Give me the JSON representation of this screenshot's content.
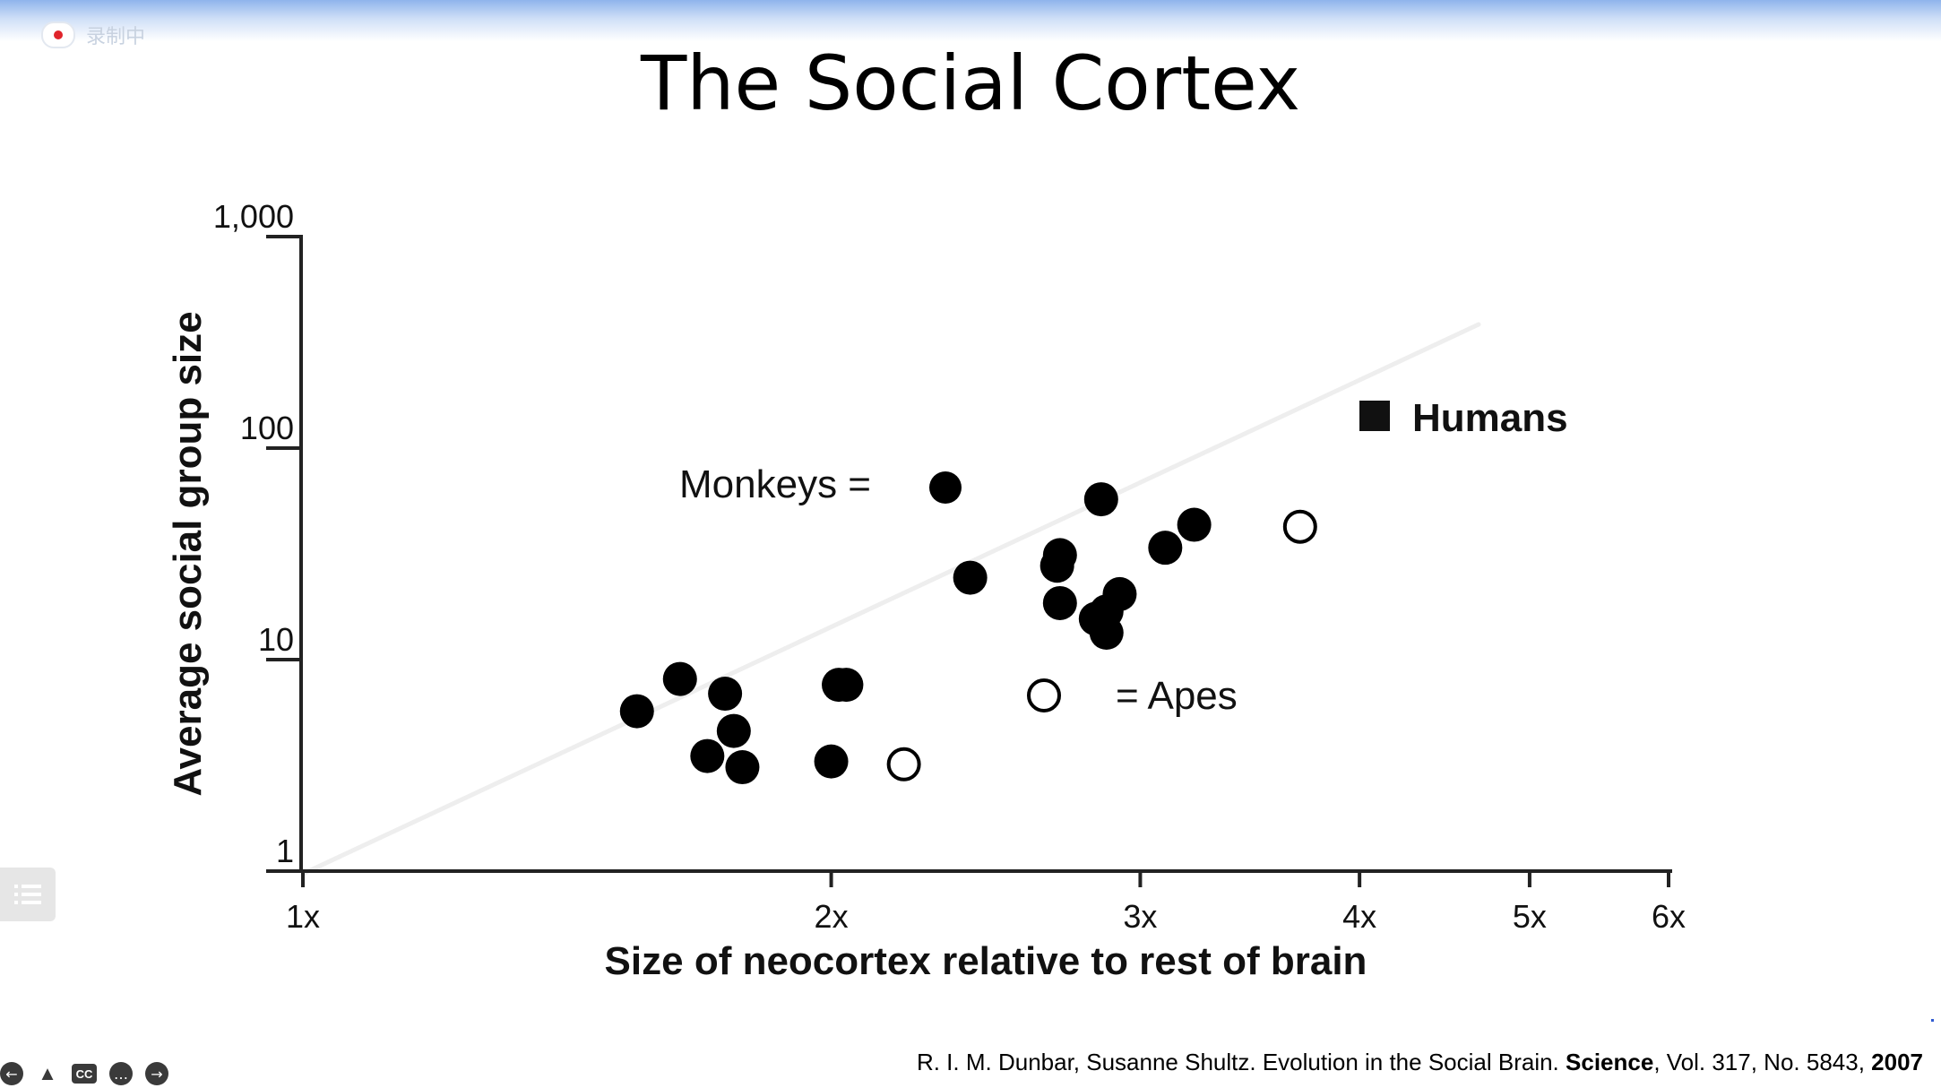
{
  "recording": {
    "label": "录制中"
  },
  "slide": {
    "title": "The Social Cortex"
  },
  "chart_data": {
    "type": "scatter",
    "title": "",
    "xlabel": "Size of neocortex relative to rest of brain",
    "ylabel": "Average social group size",
    "x_scale": "log",
    "y_scale": "log",
    "xlim": [
      1,
      6
    ],
    "ylim": [
      1,
      1000
    ],
    "x_ticks": [
      {
        "value": 1,
        "label": "1x"
      },
      {
        "value": 2,
        "label": "2x"
      },
      {
        "value": 3,
        "label": "3x"
      },
      {
        "value": 4,
        "label": "4x"
      },
      {
        "value": 5,
        "label": "5x"
      },
      {
        "value": 6,
        "label": "6x"
      }
    ],
    "y_ticks": [
      {
        "value": 1,
        "label": "1"
      },
      {
        "value": 10,
        "label": "10"
      },
      {
        "value": 100,
        "label": "100"
      },
      {
        "value": 1000,
        "label": "1,000"
      }
    ],
    "legend": {
      "monkeys": "Monkeys =",
      "apes": "= Apes",
      "humans": "Humans"
    },
    "series": [
      {
        "key": "monkeys",
        "marker": "filled-circle",
        "color": "#000000",
        "points": [
          [
            1.55,
            5.7
          ],
          [
            1.64,
            8.1
          ],
          [
            1.74,
            6.9
          ],
          [
            1.76,
            4.6
          ],
          [
            1.7,
            3.5
          ],
          [
            1.78,
            3.1
          ],
          [
            2.0,
            3.3
          ],
          [
            2.02,
            7.6
          ],
          [
            2.04,
            7.6
          ],
          [
            2.4,
            24.4
          ],
          [
            2.69,
            27.8
          ],
          [
            2.7,
            31.2
          ],
          [
            2.7,
            18.5
          ],
          [
            2.85,
            57.3
          ],
          [
            2.83,
            15.6
          ],
          [
            2.87,
            16.9
          ],
          [
            2.87,
            13.4
          ],
          [
            2.92,
            20.4
          ],
          [
            3.1,
            33.8
          ],
          [
            3.22,
            43.4
          ]
        ]
      },
      {
        "key": "apes",
        "marker": "open-circle",
        "color": "#000000",
        "points": [
          [
            2.2,
            3.2
          ],
          [
            3.7,
            42.5
          ]
        ]
      },
      {
        "key": "humans",
        "marker": "filled-square",
        "color": "#000000",
        "points": []
      }
    ]
  },
  "citation": {
    "authors": "R. I. M. Dunbar, Susanne Shultz. Evolution in the Social Brain. ",
    "journal": "Science",
    "details": ", Vol. 317, No. 5843, ",
    "year": "2007"
  },
  "toolbar": {
    "prev_icon": "arrow-left-icon",
    "person_icon": "person-icon",
    "cc_label": "CC",
    "more_icon": "more-icon",
    "next_icon": "arrow-right-icon"
  },
  "side_menu_icon": "list-icon"
}
